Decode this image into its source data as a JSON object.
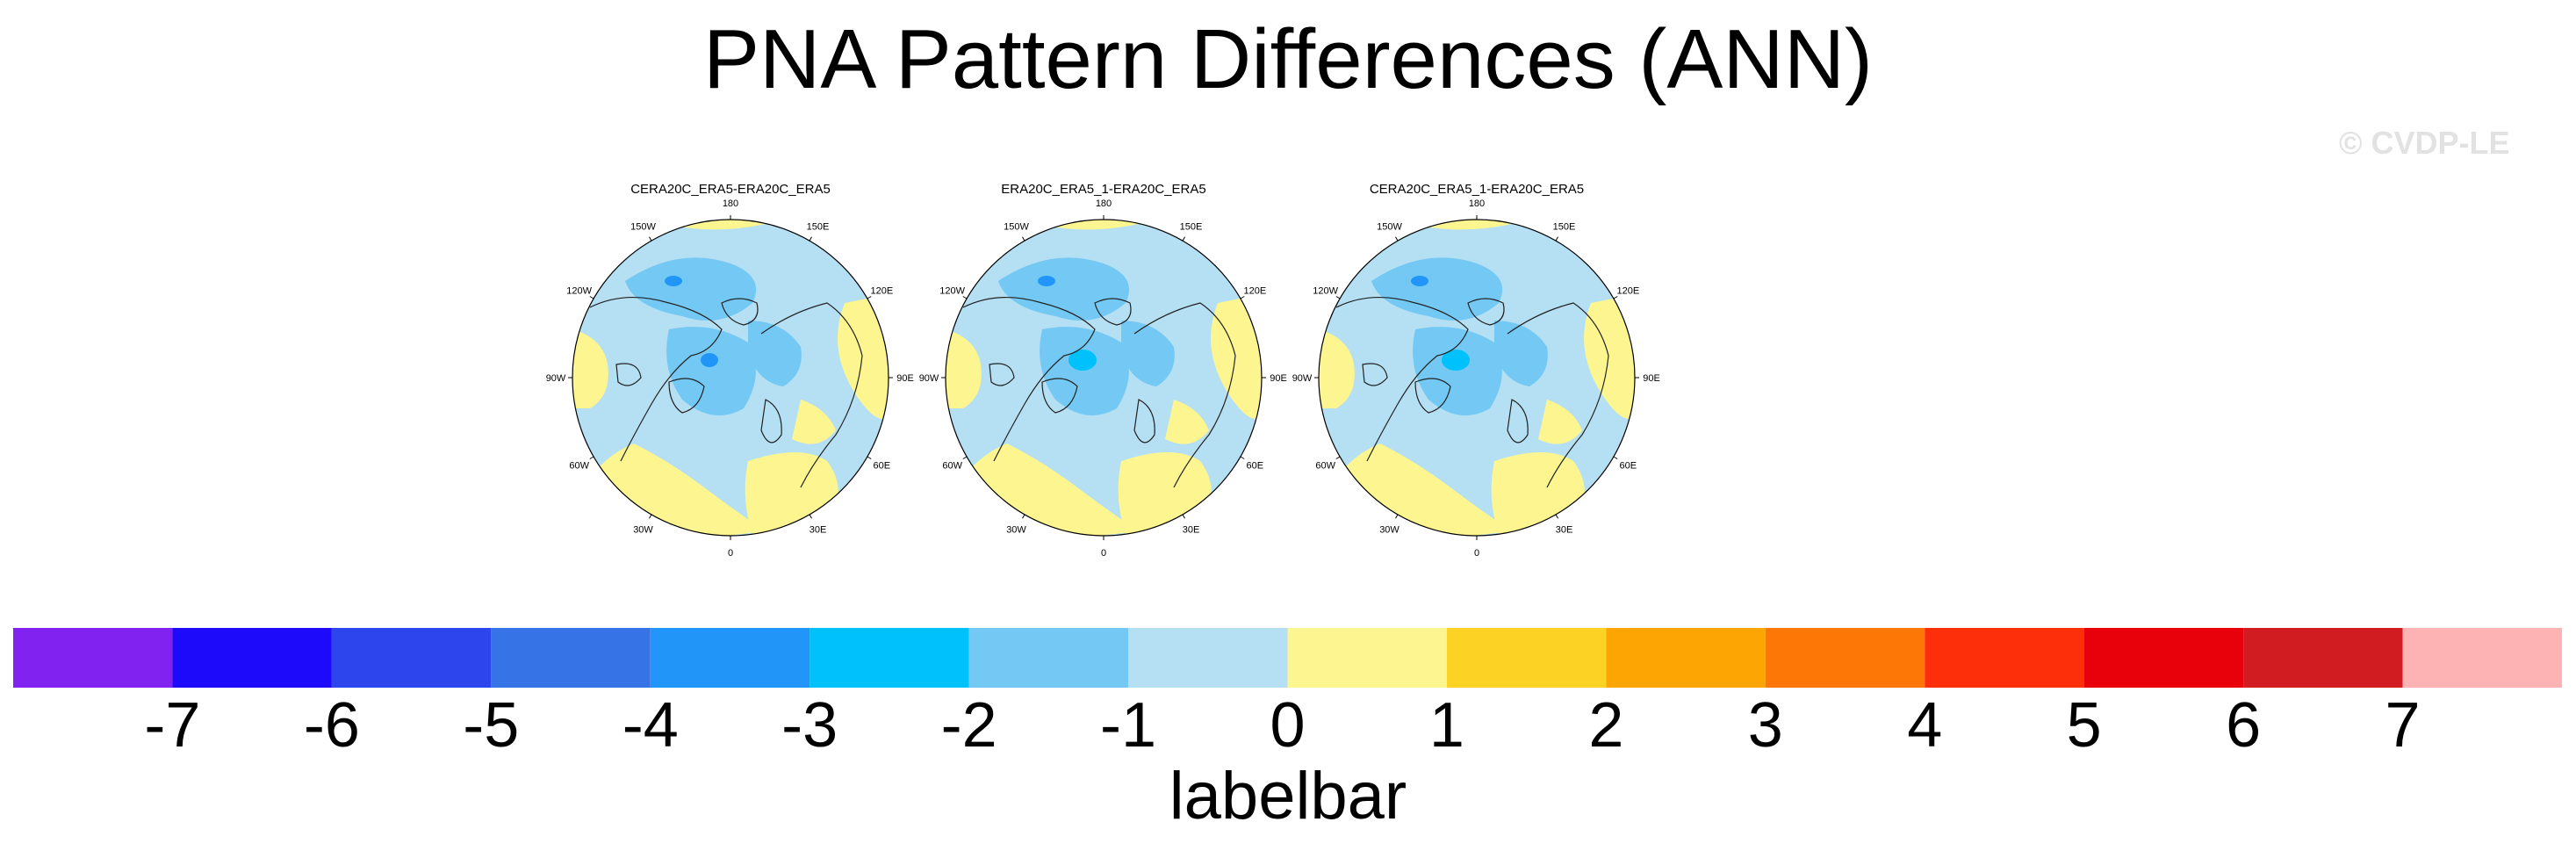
{
  "title": "PNA Pattern Differences (ANN)",
  "watermark": "© CVDP-LE",
  "panels": [
    {
      "title": "CERA20C_ERA5-ERA20C_ERA5"
    },
    {
      "title": "ERA20C_ERA5_1-ERA20C_ERA5"
    },
    {
      "title": "CERA20C_ERA5_1-ERA20C_ERA5"
    }
  ],
  "map": {
    "projection": "north-polar-stereographic",
    "lon_labels": [
      "180",
      "150E",
      "120E",
      "90E",
      "60E",
      "30E",
      "0",
      "30W",
      "60W",
      "90W",
      "120W",
      "150W"
    ],
    "land_color": "#b5dff3",
    "ocean_color": "#fdf690"
  },
  "labelbar": {
    "title": "labelbar",
    "levels": [
      "-7",
      "-6",
      "-5",
      "-4",
      "-3",
      "-2",
      "-1",
      "0",
      "1",
      "2",
      "3",
      "4",
      "5",
      "6",
      "7"
    ],
    "colors": [
      "#8122f0",
      "#1e0afa",
      "#2d45ec",
      "#3673e7",
      "#2195f8",
      "#00c1fb",
      "#73c8f4",
      "#b5dff3",
      "#fdf690",
      "#fcd224",
      "#fca503",
      "#fd7706",
      "#fd2e0a",
      "#e8000a",
      "#d11c21",
      "#fdb3b4"
    ]
  }
}
